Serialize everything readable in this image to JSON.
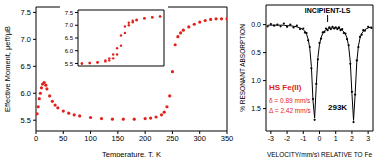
{
  "chart_data": [
    {
      "type": "scatter",
      "xlabel": "Temperature, T, K",
      "ylabel": "Effective Moment, μeff/μB",
      "x": [
        2,
        4,
        6,
        8,
        10,
        12,
        15,
        18,
        20,
        25,
        30,
        35,
        40,
        50,
        60,
        70,
        80,
        100,
        120,
        140,
        160,
        180,
        200,
        210,
        220,
        230,
        235,
        240,
        245,
        250,
        255,
        260,
        265,
        270,
        280,
        290,
        300,
        310,
        320,
        330,
        340,
        350
      ],
      "values": [
        5.62,
        5.75,
        5.9,
        6.0,
        6.1,
        6.17,
        6.2,
        6.15,
        6.08,
        5.95,
        5.85,
        5.78,
        5.73,
        5.67,
        5.63,
        5.6,
        5.58,
        5.55,
        5.53,
        5.52,
        5.52,
        5.52,
        5.53,
        5.54,
        5.56,
        5.6,
        5.65,
        5.75,
        5.95,
        6.4,
        6.9,
        7.05,
        7.12,
        7.17,
        7.23,
        7.28,
        7.32,
        7.35,
        7.37,
        7.38,
        7.38,
        7.38
      ],
      "color": "#e3211c",
      "marker": "circle",
      "xlim": [
        0,
        350
      ],
      "xticks": [
        0,
        50,
        100,
        150,
        200,
        250,
        300,
        350
      ],
      "ylim": [
        5.3,
        7.6
      ],
      "yticks": [
        5.5,
        {
          "value": 6,
          "label": "6.0"
        },
        6.5,
        {
          "value": 7,
          "label": "7.0"
        },
        7.5
      ],
      "grid": false
    },
    {
      "type": "scatter",
      "x": [
        200,
        210,
        220,
        230,
        235,
        240,
        245,
        250,
        255,
        260,
        265,
        270,
        280,
        290,
        300
      ],
      "series": [
        {
          "color": "#e3211c",
          "marker": "circle",
          "values": [
            5.5,
            5.52,
            5.55,
            5.62,
            5.7,
            5.85,
            6.1,
            6.6,
            6.95,
            7.1,
            7.18,
            7.22,
            7.28,
            7.32,
            7.35
          ]
        },
        {
          "color": "#e3211c",
          "marker": "circle",
          "values": [
            5.5,
            5.52,
            5.54,
            5.58,
            5.62,
            5.7,
            5.85,
            6.2,
            6.7,
            7.0,
            7.12,
            7.2,
            7.27,
            7.31,
            7.34
          ]
        }
      ],
      "xlim": [
        195,
        305
      ],
      "ylim": [
        5.4,
        7.6
      ],
      "yticks": [
        5.5,
        {
          "value": 6,
          "label": "6.0"
        },
        6.5,
        {
          "value": 7,
          "label": "7.0"
        },
        7.5
      ],
      "tick_labels": "y",
      "grid": false
    },
    {
      "type": "scatter",
      "xlabel": "VELOCITY(mm/s) RELATIVE TO Fe",
      "ylabel": "% RESONANT ABSORPTION",
      "x": [
        -3.2,
        -3.0,
        -2.8,
        -2.6,
        -2.4,
        -2.2,
        -2.0,
        -1.8,
        -1.6,
        -1.4,
        -1.2,
        -1.0,
        -0.9,
        -0.8,
        -0.7,
        -0.6,
        -0.5,
        -0.4,
        -0.3,
        -0.2,
        -0.1,
        0.0,
        0.1,
        0.2,
        0.3,
        0.4,
        0.5,
        0.6,
        0.7,
        0.8,
        0.9,
        1.0,
        1.1,
        1.2,
        1.3,
        1.4,
        1.5,
        1.6,
        1.7,
        1.8,
        1.9,
        2.0,
        2.1,
        2.2,
        2.3,
        2.4,
        2.5,
        2.6,
        2.7,
        2.8,
        3.0,
        3.2
      ],
      "series": [
        {
          "type": "scatter",
          "color": "#000000",
          "marker": "circle",
          "values": [
            0.03,
            -0.01,
            0.02,
            0.0,
            0.03,
            -0.02,
            0.04,
            0.0,
            0.05,
            0.02,
            0.08,
            0.07,
            0.14,
            0.15,
            0.28,
            0.4,
            0.78,
            1.33,
            1.7,
            1.06,
            0.62,
            0.33,
            0.25,
            0.14,
            0.13,
            0.07,
            0.1,
            0.05,
            0.08,
            0.04,
            0.07,
            0.05,
            0.08,
            0.05,
            0.1,
            0.08,
            0.15,
            0.16,
            0.26,
            0.37,
            0.7,
            1.2,
            1.74,
            1.25,
            0.64,
            0.4,
            0.22,
            0.18,
            0.1,
            0.11,
            0.04,
            0.06
          ]
        },
        {
          "type": "line",
          "color": "#000000",
          "line_style": "solid",
          "values": [
            0.01,
            0.01,
            0.01,
            0.01,
            0.01,
            0.01,
            0.02,
            0.02,
            0.03,
            0.04,
            0.06,
            0.09,
            0.12,
            0.17,
            0.26,
            0.42,
            0.75,
            1.36,
            1.67,
            1.09,
            0.59,
            0.35,
            0.23,
            0.16,
            0.12,
            0.09,
            0.08,
            0.07,
            0.06,
            0.06,
            0.06,
            0.06,
            0.06,
            0.07,
            0.08,
            0.1,
            0.13,
            0.17,
            0.24,
            0.39,
            0.67,
            1.23,
            1.71,
            1.23,
            0.67,
            0.38,
            0.24,
            0.16,
            0.12,
            0.09,
            0.06,
            0.04
          ]
        }
      ],
      "xlim": [
        -3.3,
        3.3
      ],
      "xticks": [
        -3,
        -2,
        -1,
        0,
        1,
        2,
        3
      ],
      "ylim": [
        1.9,
        -0.35
      ],
      "yticks": [
        {
          "value": 0,
          "label": "0.0"
        },
        0.5,
        {
          "value": 1,
          "label": "1.0"
        },
        1.5
      ],
      "annotations": [
        {
          "text": "INCIPIENT-LS",
          "x": 0.5
        },
        {
          "text": "HS Fe(II)",
          "color": "#e3211c"
        },
        {
          "text": "δ = 0.89 mm/s",
          "color": "#e3211c"
        },
        {
          "text": "Δ = 2.42 mm/s",
          "color": "#e3211c"
        },
        {
          "text": "293K",
          "color": "#000000"
        }
      ],
      "grid": false
    }
  ]
}
